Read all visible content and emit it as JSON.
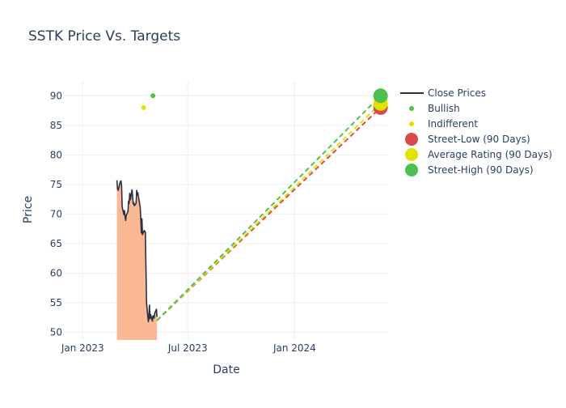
{
  "chart_data": {
    "type": "line",
    "title": "SSTK Price Vs. Targets",
    "xlabel": "Date",
    "ylabel": "Price",
    "x_ticks": [
      "Jan 2023",
      "Jul 2023",
      "Jan 2024"
    ],
    "y_ticks": [
      50,
      55,
      60,
      65,
      70,
      75,
      80,
      85,
      90
    ],
    "xlim": [
      "2022-12-01",
      "2024-06-10"
    ],
    "ylim": [
      48.7,
      92.5
    ],
    "grid": true,
    "legend_position": "right",
    "colors": {
      "close": "#2a3042",
      "fill": "#fbb894",
      "bullish": "#4ec04e",
      "indifferent": "#e2e200",
      "street_low": "#d84b4b",
      "average": "#e2e200",
      "street_high": "#4ec04e",
      "grid": "#eeeeee",
      "text": "#2a3f5f"
    },
    "series": [
      {
        "name": "Close Prices",
        "kind": "line",
        "points": [
          [
            "2023-03-01",
            75.7
          ],
          [
            "2023-03-02",
            74.2
          ],
          [
            "2023-03-03",
            74.0
          ],
          [
            "2023-03-06",
            75.2
          ],
          [
            "2023-03-07",
            75.5
          ],
          [
            "2023-03-08",
            75.6
          ],
          [
            "2023-03-09",
            74.8
          ],
          [
            "2023-03-10",
            71.2
          ],
          [
            "2023-03-13",
            69.9
          ],
          [
            "2023-03-14",
            70.6
          ],
          [
            "2023-03-15",
            69.5
          ],
          [
            "2023-03-16",
            68.9
          ],
          [
            "2023-03-17",
            69.8
          ],
          [
            "2023-03-20",
            70.4
          ],
          [
            "2023-03-21",
            72.2
          ],
          [
            "2023-03-22",
            71.8
          ],
          [
            "2023-03-23",
            73.5
          ],
          [
            "2023-03-24",
            72.4
          ],
          [
            "2023-03-27",
            74.1
          ],
          [
            "2023-03-28",
            73.0
          ],
          [
            "2023-03-29",
            71.7
          ],
          [
            "2023-03-30",
            71.9
          ],
          [
            "2023-03-31",
            71.4
          ],
          [
            "2023-04-03",
            71.8
          ],
          [
            "2023-04-04",
            74.0
          ],
          [
            "2023-04-05",
            73.2
          ],
          [
            "2023-04-06",
            73.6
          ],
          [
            "2023-04-10",
            71.2
          ],
          [
            "2023-04-11",
            69.4
          ],
          [
            "2023-04-12",
            66.8
          ],
          [
            "2023-04-13",
            69.2
          ],
          [
            "2023-04-14",
            66.5
          ],
          [
            "2023-04-17",
            67.2
          ],
          [
            "2023-04-18",
            67.1
          ],
          [
            "2023-04-19",
            66.9
          ],
          [
            "2023-04-20",
            60.5
          ],
          [
            "2023-04-21",
            55.0
          ],
          [
            "2023-04-24",
            51.8
          ],
          [
            "2023-04-25",
            52.6
          ],
          [
            "2023-04-26",
            54.6
          ],
          [
            "2023-04-27",
            52.3
          ],
          [
            "2023-04-28",
            53.0
          ],
          [
            "2023-05-01",
            51.9
          ],
          [
            "2023-05-02",
            52.8
          ],
          [
            "2023-05-03",
            52.7
          ],
          [
            "2023-05-04",
            52.4
          ],
          [
            "2023-05-05",
            53.2
          ],
          [
            "2023-05-08",
            53.9
          ],
          [
            "2023-05-09",
            52.6
          ]
        ]
      },
      {
        "name": "Bullish",
        "kind": "marker",
        "points": [
          [
            "2023-05-02",
            90
          ]
        ]
      },
      {
        "name": "Indifferent",
        "kind": "marker",
        "points": [
          [
            "2023-04-16",
            88
          ]
        ]
      },
      {
        "name": "Street-Low (90 Days)",
        "kind": "target",
        "start": [
          "2023-05-09",
          52.0
        ],
        "end": [
          "2024-05-28",
          88.0
        ]
      },
      {
        "name": "Average Rating (90 Days)",
        "kind": "target",
        "start": [
          "2023-05-09",
          52.0
        ],
        "end": [
          "2024-05-28",
          88.7
        ]
      },
      {
        "name": "Street-High (90 Days)",
        "kind": "target",
        "start": [
          "2023-05-09",
          52.0
        ],
        "end": [
          "2024-05-28",
          90.0
        ]
      }
    ]
  }
}
